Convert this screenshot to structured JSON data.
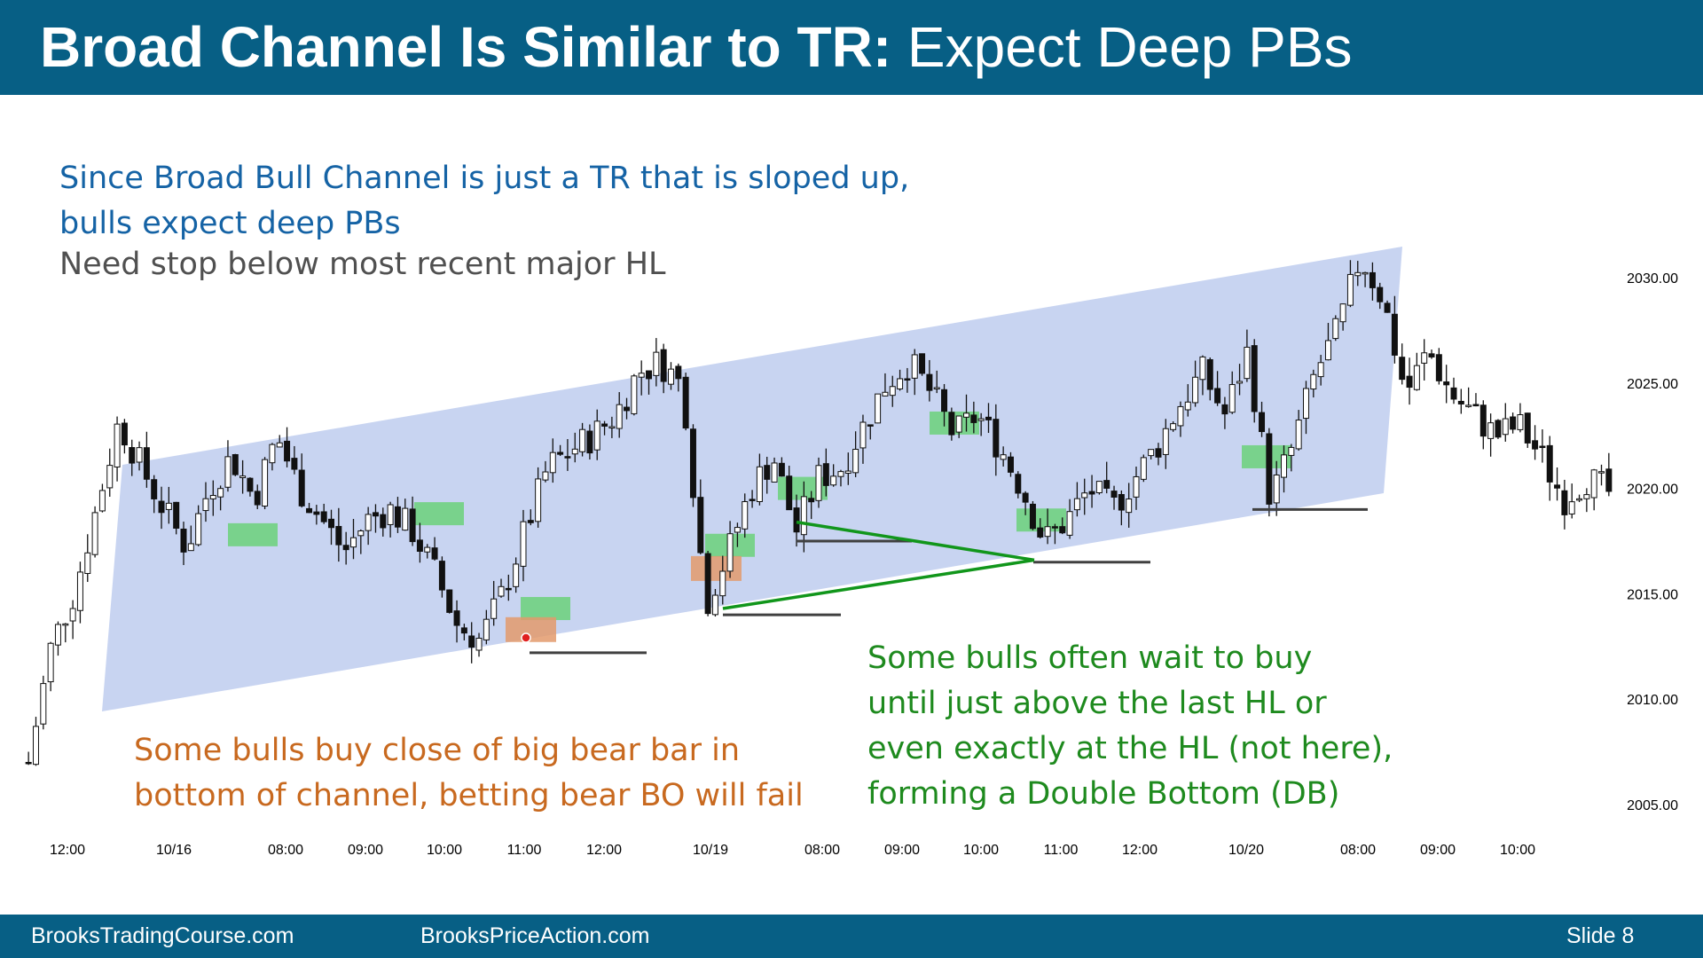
{
  "slide": {
    "title_bold": "Broad Channel Is Similar to TR:",
    "title_rest": "Expect Deep PBs",
    "footer_left": "BrooksTradingCourse.com",
    "footer_mid": "BrooksPriceAction.com",
    "slide_label": "Slide 8"
  },
  "notes": {
    "blue_line1": "Since Broad Bull Channel is just a TR that is sloped up,",
    "blue_line2": "bulls expect deep PBs",
    "gray_line": "Need stop below most recent major HL",
    "orange_line1": "Some bulls buy close of big bear bar in",
    "orange_line2": "bottom of channel, betting bear BO will fail",
    "green_line1": "Some bulls often wait to buy",
    "green_line2": "until just above the last HL or",
    "green_line3": "even exactly at the HL (not here),",
    "green_line4": "forming a Double Bottom (DB)"
  },
  "chart_data": {
    "type": "candlestick",
    "y_ticks": [
      "2005.00",
      "2010.00",
      "2015.00",
      "2020.00",
      "2025.00",
      "2030.00"
    ],
    "ylim": [
      2003.5,
      2031.5
    ],
    "x_ticks": [
      "12:00",
      "10/16",
      "08:00",
      "09:00",
      "10:00",
      "11:00",
      "12:00",
      "10/19",
      "08:00",
      "09:00",
      "10:00",
      "11:00",
      "12:00",
      "10/20",
      "08:00",
      "09:00",
      "10:00"
    ],
    "channel": {
      "type": "broad bull channel",
      "lower_start": 2010.5,
      "lower_end": 2020.0,
      "upper_start": 2021.0,
      "upper_end": 2031.2
    },
    "price_path": [
      2007.0,
      2012.5,
      2015.0,
      2019.0,
      2023.2,
      2021.0,
      2019.0,
      2017.2,
      2020.0,
      2021.5,
      2019.5,
      2022.5,
      2020.0,
      2018.5,
      2017.0,
      2018.5,
      2019.0,
      2018.0,
      2016.0,
      2013.5,
      2012.8,
      2015.0,
      2018.0,
      2021.0,
      2021.8,
      2022.5,
      2023.5,
      2025.5,
      2026.0,
      2024.8,
      2014.5,
      2017.0,
      2020.0,
      2021.5,
      2018.0,
      2020.5,
      2021.0,
      2023.0,
      2025.0,
      2026.0,
      2024.5,
      2022.5,
      2023.5,
      2022.0,
      2020.0,
      2017.5,
      2018.5,
      2020.0,
      2019.0,
      2020.5,
      2022.0,
      2024.0,
      2025.5,
      2023.5,
      2026.5,
      2019.5,
      2022.0,
      2025.5,
      2027.5,
      2031.0,
      2029.0,
      2024.5,
      2026.5,
      2024.5,
      2023.5,
      2022.5,
      2023.0,
      2021.5,
      2019.5,
      2020.5,
      2019.8
    ],
    "buy_zones": [
      {
        "label": "green",
        "price": 2017.8
      },
      {
        "label": "green",
        "price": 2018.8
      },
      {
        "label": "green",
        "price": 2014.3
      },
      {
        "label": "green",
        "price": 2017.3
      },
      {
        "label": "green",
        "price": 2020.0
      },
      {
        "label": "green",
        "price": 2023.1
      },
      {
        "label": "green",
        "price": 2018.5
      },
      {
        "label": "green",
        "price": 2021.5
      }
    ],
    "big_bear_bar_buys": [
      {
        "label": "orange",
        "price": 2013.3
      },
      {
        "label": "orange",
        "price": 2016.2
      }
    ],
    "higher_low_stops": [
      2012.2,
      2014.0,
      2017.5,
      2016.5,
      2019.0
    ],
    "double_bottom_lines": [
      {
        "from": 2018.4,
        "to": 2016.6
      },
      {
        "from": 2014.3,
        "to": 2016.6
      }
    ]
  }
}
